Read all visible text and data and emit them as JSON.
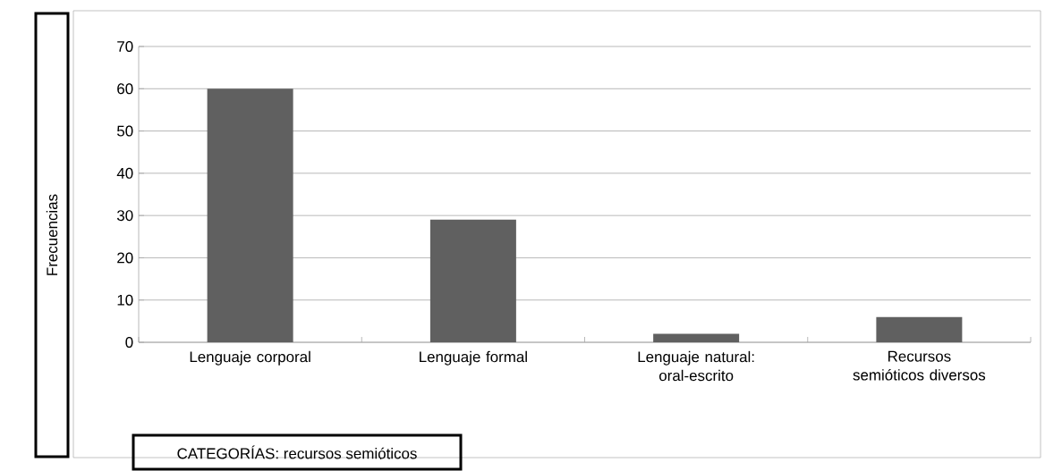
{
  "chart_data": {
    "type": "bar",
    "xlabel": "CATEGORÍAS: recursos semióticos",
    "ylabel": "Frecuencias",
    "categories": [
      "Lenguaje corporal",
      "Lenguaje formal",
      "Lenguaje natural: oral-escrito",
      "Recursos semióticos diversos"
    ],
    "values": [
      60,
      29,
      2,
      6
    ],
    "color": "#606060",
    "ylim": [
      0,
      70
    ],
    "yticks": [
      0,
      10,
      20,
      30,
      40,
      50,
      60,
      70
    ],
    "grid": "y",
    "legend": false
  }
}
